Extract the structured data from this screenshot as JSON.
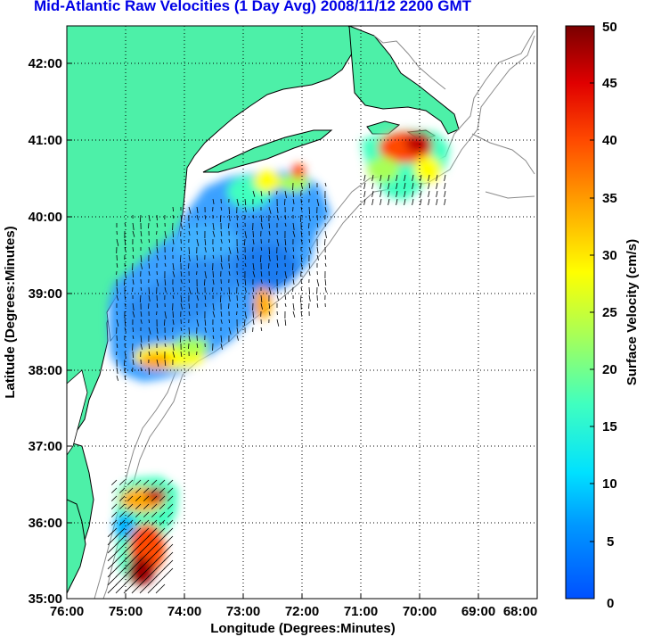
{
  "title": "Mid-Atlantic Raw Velocities (1 Day Avg) 2008/11/12 2200 GMT",
  "axes": {
    "x_label": "Longitude (Degrees:Minutes)",
    "y_label": "Latitude (Degrees:Minutes)",
    "x_ticks": [
      "76:00",
      "75:00",
      "74:00",
      "73:00",
      "72:00",
      "71:00",
      "70:00",
      "69:00",
      "68:00"
    ],
    "y_ticks": [
      "35:00",
      "36:00",
      "37:00",
      "38:00",
      "39:00",
      "40:00",
      "41:00",
      "42:00"
    ],
    "x_range": [
      -76,
      -68
    ],
    "y_range": [
      35,
      42.5
    ]
  },
  "colorbar": {
    "label": "Surface Velocity (cm/s)",
    "ticks": [
      "0",
      "5",
      "10",
      "15",
      "20",
      "25",
      "30",
      "35",
      "40",
      "45",
      "50"
    ],
    "range": [
      0,
      50
    ]
  },
  "colors": {
    "land": "#4df0a8",
    "coast": "#000000",
    "bathymetry": "#8a8a8a",
    "title": "#0000e6"
  }
}
